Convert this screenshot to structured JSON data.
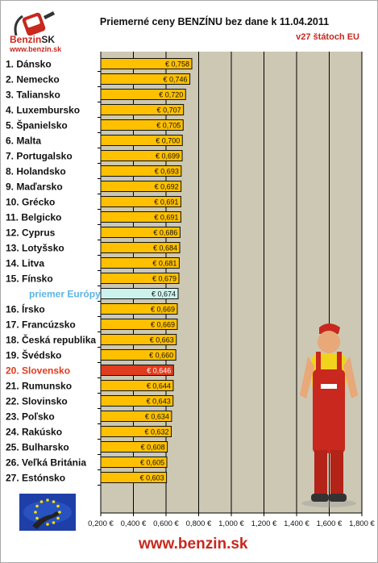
{
  "header": {
    "logo_label": "Benzin",
    "logo_suffix": "SK",
    "logo_url": "www.benzin.sk",
    "title": "Priemerné ceny BENZÍNU bez dane k 11.04.2011",
    "subtitle": "v27 štátoch EU"
  },
  "footer": {
    "url": "www.benzin.sk"
  },
  "colors": {
    "bar": "#ffc000",
    "bar_highlight": "#e03c1e",
    "bar_average": "#ccf2ec",
    "label_highlight": "#e03c1e",
    "label_average": "#5ab4e6",
    "plot_background": "#ccc8b4",
    "accent": "#c8281e"
  },
  "chart_data": {
    "type": "bar",
    "orientation": "horizontal",
    "title": "Priemerné ceny BENZÍNU bez dane k 11.04.2011",
    "subtitle": "v27 štátoch EU",
    "categories": [
      "1. Dánsko",
      "2. Nemecko",
      "3. Taliansko",
      "4. Luxembursko",
      "5. Španielsko",
      "6. Malta",
      "7. Portugalsko",
      "8. Holandsko",
      "9. Maďarsko",
      "10. Grécko",
      "11. Belgicko",
      "12. Cyprus",
      "13. Lotyšsko",
      "14. Litva",
      "15. Fínsko",
      "priemer Európy",
      "16. Írsko",
      "17. Francúzsko",
      "18. Česká republika",
      "19. Švédsko",
      "20. Slovensko",
      "21. Rumunsko",
      "22. Slovinsko",
      "23. Poľsko",
      "24. Rakúsko",
      "25. Bulharsko",
      "26. Veľká Británia",
      "27. Estónsko"
    ],
    "values": [
      0.758,
      0.746,
      0.72,
      0.707,
      0.705,
      0.7,
      0.699,
      0.693,
      0.692,
      0.691,
      0.691,
      0.686,
      0.684,
      0.681,
      0.679,
      0.674,
      0.669,
      0.669,
      0.663,
      0.66,
      0.646,
      0.644,
      0.643,
      0.634,
      0.632,
      0.608,
      0.605,
      0.603
    ],
    "value_labels": [
      "€ 0,758",
      "€ 0,746",
      "€ 0,720",
      "€ 0,707",
      "€ 0,705",
      "€ 0,700",
      "€ 0,699",
      "€ 0,693",
      "€ 0,692",
      "€ 0,691",
      "€ 0,691",
      "€ 0,686",
      "€ 0,684",
      "€ 0,681",
      "€ 0,679",
      "€ 0,674",
      "€ 0,669",
      "€ 0,669",
      "€ 0,663",
      "€ 0,660",
      "€ 0,646",
      "€ 0,644",
      "€ 0,643",
      "€ 0,634",
      "€ 0,632",
      "€ 0,608",
      "€ 0,605",
      "€ 0,603"
    ],
    "highlight_index": 20,
    "average_index": 15,
    "xlim": [
      0.2,
      1.8
    ],
    "x_ticks": [
      0.2,
      0.4,
      0.6,
      0.8,
      1.0,
      1.2,
      1.4,
      1.6,
      1.8
    ],
    "x_tick_labels": [
      "0,200 €",
      "0,400 €",
      "0,600 €",
      "0,800 €",
      "1,000 €",
      "1,200 €",
      "1,400 €",
      "1,600 €",
      "1,800 €"
    ],
    "grid": "vertical"
  }
}
